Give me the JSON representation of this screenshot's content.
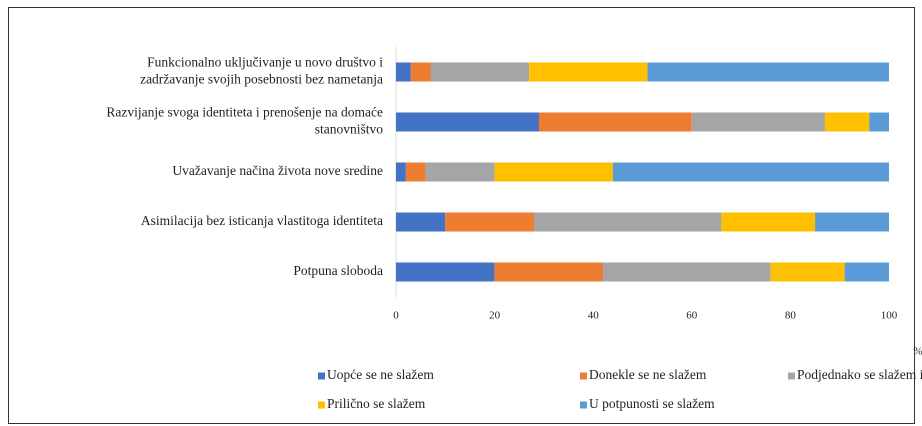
{
  "chart_data": {
    "type": "stacked-bar-horizontal",
    "categories": [
      "Funkcionalno uključivanje u novo društvo i\nzadržavanje svojih posebnosti bez nametanja",
      "Razvijanje svoga identiteta i prenošenje na domaće\nstanovništvo",
      "Uvažavanje načina života nove sredine",
      "Asimilacija bez isticanja vlastitoga identiteta",
      "Potpuna sloboda"
    ],
    "series": [
      {
        "name": "Uopće se ne slažem",
        "color": "#4472c4",
        "values": [
          3,
          29,
          2,
          10,
          20
        ]
      },
      {
        "name": "Donekle se ne slažem",
        "color": "#ed7d31",
        "values": [
          4,
          31,
          4,
          18,
          22
        ]
      },
      {
        "name": "Podjednako se slažem i ne slažem",
        "color": "#a5a5a5",
        "values": [
          20,
          27,
          14,
          38,
          34
        ]
      },
      {
        "name": "Prilično se slažem",
        "color": "#ffc000",
        "values": [
          24,
          9,
          24,
          19,
          15
        ]
      },
      {
        "name": "U potpunosti se slažem",
        "color": "#5b9bd5",
        "values": [
          49,
          4,
          56,
          15,
          9
        ]
      }
    ],
    "xlim": [
      0,
      100
    ],
    "xticks": [
      0,
      20,
      40,
      60,
      80,
      100
    ],
    "x_unit": "%",
    "legend": "bottom"
  }
}
